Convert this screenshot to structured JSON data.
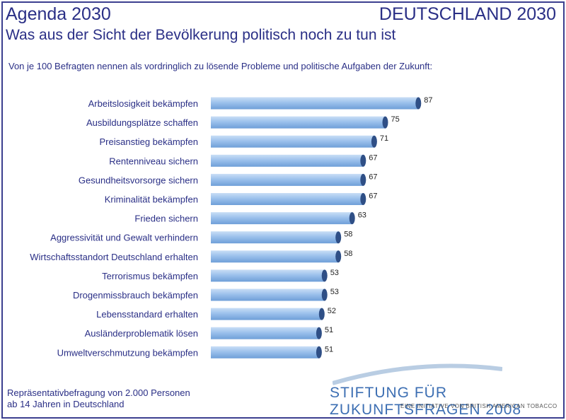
{
  "header": {
    "title_left": "Agenda 2030",
    "title_right": "DEUTSCHLAND 2030",
    "subtitle": "Was aus der Sicht der Bevölkerung politisch noch zu tun ist",
    "question": "Von je 100 Befragten nennen als vordringlich zu lösende Probleme und politische Aufgaben der Zukunft:"
  },
  "chart_data": {
    "type": "bar",
    "orientation": "horizontal",
    "categories": [
      "Arbeitslosigkeit bekämpfen",
      "Ausbildungsplätze schaffen",
      "Preisanstieg bekämpfen",
      "Rentenniveau sichern",
      "Gesundheitsvorsorge sichern",
      "Kriminalität bekämpfen",
      "Frieden sichern",
      "Aggressivität und Gewalt verhindern",
      "Wirtschaftsstandort Deutschland erhalten",
      "Terrorismus bekämpfen",
      "Drogenmissbrauch bekämpfen",
      "Lebensstandard erhalten",
      "Ausländerproblematik lösen",
      "Umweltverschmutzung bekämpfen"
    ],
    "values": [
      87,
      75,
      71,
      67,
      67,
      67,
      63,
      58,
      58,
      53,
      53,
      52,
      51,
      51
    ],
    "title": "",
    "xlabel": "",
    "ylabel": "",
    "xlim": [
      0,
      100
    ],
    "grid": false,
    "legend": "none",
    "bar_color": "#8fb7e6",
    "bar_end_color": "#2f4f86"
  },
  "footer": {
    "note_line1": "Repräsentativbefragung von 2.000 Personen",
    "note_line2": "ab 14 Jahren in Deutschland",
    "org_name": "STIFTUNG FÜR ZUKUNFTSFRAGEN 2008",
    "org_sub": "EINE INITIATIVE VON BRITISH AMERICAN TOBACCO"
  },
  "colors": {
    "text": "#2a2f86",
    "border": "#3b3f8f"
  }
}
